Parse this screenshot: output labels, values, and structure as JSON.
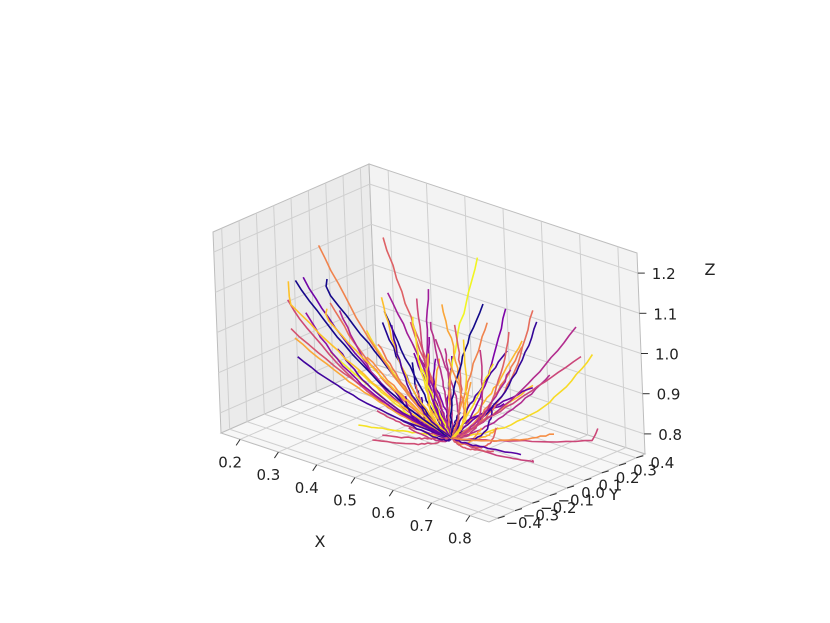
{
  "chart_data": {
    "type": "line",
    "projection": "3d",
    "title": "",
    "xlabel": "X",
    "ylabel": "Y",
    "zlabel": "Z",
    "xlim": [
      0.15,
      0.85
    ],
    "ylim": [
      -0.45,
      0.45
    ],
    "zlim": [
      0.75,
      1.25
    ],
    "x_ticks": [
      "0.2",
      "0.3",
      "0.4",
      "0.5",
      "0.6",
      "0.7",
      "0.8"
    ],
    "y_ticks": [
      "−0.4",
      "−0.3",
      "−0.2",
      "−0.1",
      "0.0",
      "0.1",
      "0.2",
      "0.3",
      "0.4"
    ],
    "z_ticks": [
      "0.8",
      "0.9",
      "1.0",
      "1.1",
      "1.2"
    ],
    "grid": true,
    "colormap": "plasma",
    "origin": [
      0.55,
      0.0,
      0.78
    ],
    "colors": {
      "pane_color": "#f2f2f2",
      "grid_color": "#cfcfcf",
      "edge_color": "#bdbdbd",
      "tick_color": "#333333"
    },
    "n_series": 90
  }
}
